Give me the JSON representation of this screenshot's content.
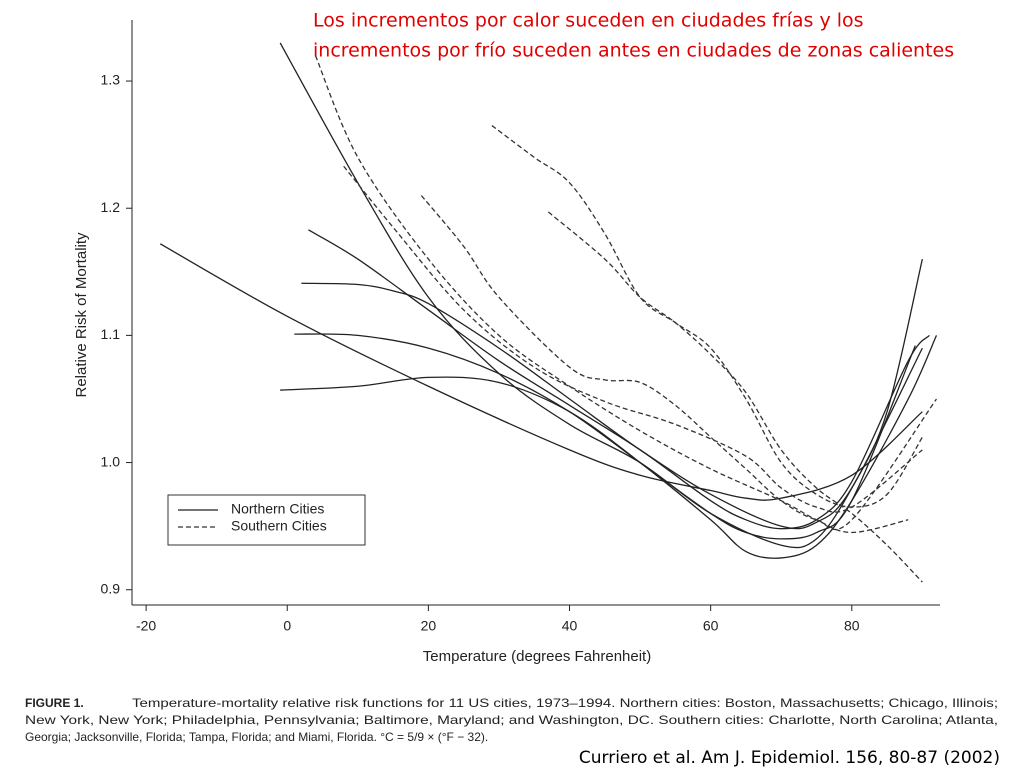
{
  "chart_data": {
    "type": "line",
    "annotation": [
      "Los incrementos por calor suceden en ciudades frías y los",
      "incrementos por frío suceden antes en ciudades de zonas calientes"
    ],
    "x_label": "Temperature (degrees Fahrenheit)",
    "y_label": "Relative Risk of Mortality",
    "xlim": [
      -22,
      92.5
    ],
    "ylim": [
      0.888,
      1.348
    ],
    "xticks": [
      -20,
      0,
      20,
      40,
      60,
      80
    ],
    "yticks": [
      0.9,
      {
        "value": 1,
        "label": "1.0"
      },
      1.1,
      1.2,
      1.3
    ],
    "legend": "lower left",
    "series": [
      {
        "name": "Northern Cities",
        "color": "#222222",
        "dash": false,
        "curves": [
          {
            "x": [
              -18,
              0,
              20,
              40,
              50,
              60,
              65,
              70,
              80,
              90
            ],
            "values": [
              1.172,
              1.115,
              1.06,
              1.01,
              0.99,
              0.978,
              0.972,
              0.972,
              0.99,
              1.04
            ]
          },
          {
            "x": [
              -1,
              10,
              20,
              30,
              40,
              50,
              60,
              70,
              75,
              80,
              85,
              90
            ],
            "values": [
              1.33,
              1.22,
              1.13,
              1.07,
              1.03,
              1.0,
              0.96,
              0.935,
              0.94,
              0.98,
              1.04,
              1.16
            ]
          },
          {
            "x": [
              3,
              10,
              20,
              30,
              40,
              50,
              60,
              65,
              70,
              75,
              80,
              88,
              91
            ],
            "values": [
              1.183,
              1.16,
              1.12,
              1.08,
              1.045,
              1.01,
              0.97,
              0.955,
              0.948,
              0.955,
              0.985,
              1.08,
              1.1
            ]
          },
          {
            "x": [
              2,
              10,
              15,
              20,
              30,
              40,
              50,
              60,
              70,
              75,
              80,
              90
            ],
            "values": [
              1.141,
              1.14,
              1.135,
              1.125,
              1.09,
              1.05,
              1.01,
              0.975,
              0.95,
              0.953,
              0.98,
              1.09
            ]
          },
          {
            "x": [
              1,
              10,
              20,
              30,
              40,
              50,
              60,
              65,
              70,
              75,
              80,
              89
            ],
            "values": [
              1.101,
              1.1,
              1.09,
              1.07,
              1.04,
              1.0,
              0.96,
              0.945,
              0.94,
              0.945,
              0.97,
              1.092
            ]
          },
          {
            "x": [
              -1,
              10,
              20,
              30,
              40,
              50,
              60,
              65,
              70,
              75,
              80,
              88,
              92
            ],
            "values": [
              1.057,
              1.06,
              1.067,
              1.063,
              1.04,
              1.0,
              0.955,
              0.93,
              0.925,
              0.935,
              0.97,
              1.05,
              1.1
            ]
          }
        ]
      },
      {
        "name": "Southern Cities",
        "color": "#333333",
        "dash": true,
        "curves": [
          {
            "x": [
              4,
              10,
              20,
              30,
              40,
              50,
              60,
              70,
              75,
              80,
              88
            ],
            "values": [
              1.32,
              1.24,
              1.16,
              1.1,
              1.06,
              1.025,
              0.995,
              0.97,
              0.955,
              0.945,
              0.955
            ]
          },
          {
            "x": [
              8,
              15,
              25,
              35,
              45,
              55,
              65,
              70,
              75,
              80,
              90
            ],
            "values": [
              1.233,
              1.185,
              1.12,
              1.075,
              1.048,
              1.03,
              1.005,
              0.98,
              0.965,
              0.965,
              1.01
            ]
          },
          {
            "x": [
              19,
              25,
              30,
              40,
              45,
              50,
              55,
              60,
              65,
              70,
              75,
              80,
              92
            ],
            "values": [
              1.21,
              1.17,
              1.13,
              1.075,
              1.065,
              1.063,
              1.045,
              1.02,
              0.995,
              0.97,
              0.955,
              0.955,
              1.05
            ]
          },
          {
            "x": [
              29,
              35,
              40,
              45,
              50,
              55,
              60,
              65,
              70,
              75,
              80,
              85,
              90
            ],
            "values": [
              1.265,
              1.24,
              1.22,
              1.18,
              1.13,
              1.11,
              1.09,
              1.05,
              1.0,
              0.975,
              0.965,
              0.975,
              1.02
            ]
          },
          {
            "x": [
              37,
              45,
              50,
              55,
              60,
              65,
              70,
              75,
              80,
              85,
              90
            ],
            "values": [
              1.197,
              1.16,
              1.13,
              1.11,
              1.085,
              1.055,
              1.01,
              0.98,
              0.96,
              0.935,
              0.906
            ]
          }
        ]
      }
    ]
  },
  "caption": {
    "label": "FIGURE 1.",
    "lines": [
      "Temperature-mortality relative risk functions for 11 US cities, 1973–1994. Northern cities: Boston, Massachusetts; Chicago, Illinois;",
      "New York, New York; Philadelphia, Pennsylvania; Baltimore, Maryland; and Washington, DC. Southern cities: Charlotte, North Carolina; Atlanta,",
      "Georgia; Jacksonville, Florida; Tampa, Florida; and Miami, Florida. °C = 5/9 × (°F − 32)."
    ]
  },
  "citation": "Curriero et al. Am J. Epidemiol. 156, 80-87 (2002)"
}
